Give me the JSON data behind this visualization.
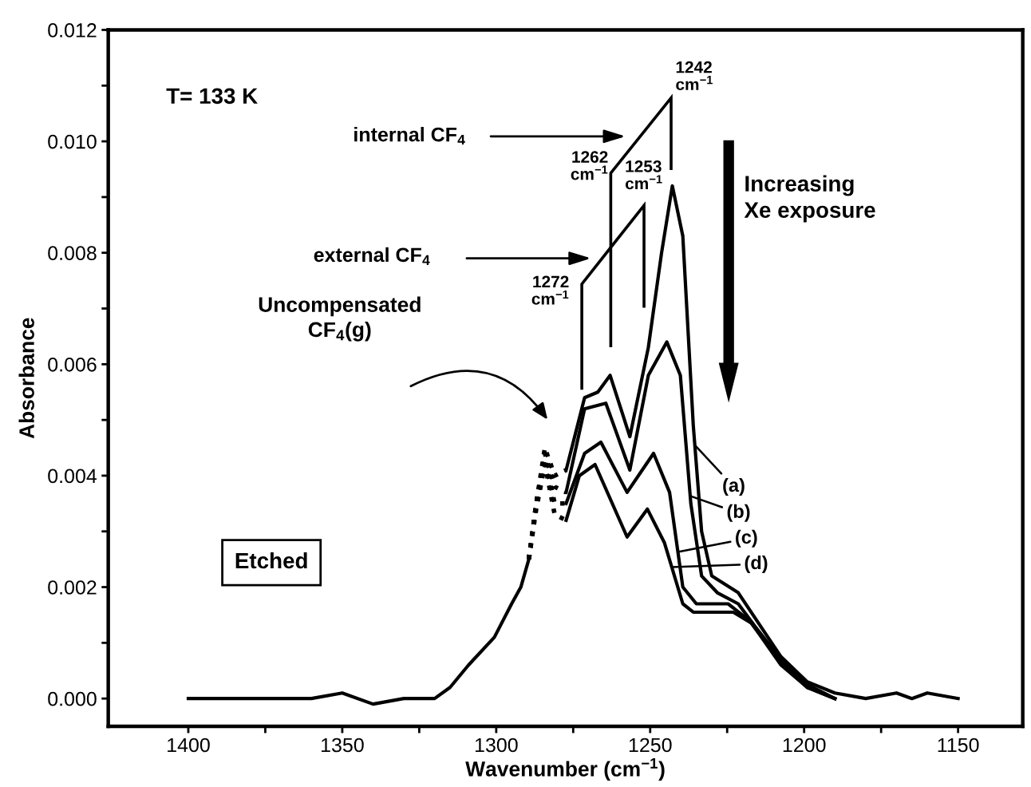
{
  "chart_data": {
    "type": "line",
    "xlabel": "Wavenumber (cm$^{−1}$)",
    "ylabel": "Absorbance",
    "xlim": [
      1426,
      1129
    ],
    "ylim": [
      -0.0005,
      0.012
    ],
    "xticks": [
      1400,
      {
        "value": 1375,
        "label": null
      },
      1350,
      {
        "value": 1325,
        "label": null
      },
      1300,
      {
        "value": 1275,
        "label": null
      },
      1250,
      {
        "value": 1225,
        "label": null
      },
      1200,
      {
        "value": 1175,
        "label": null
      },
      1150
    ],
    "yticks": [
      {
        "value": 0,
        "label": "0.000"
      },
      {
        "value": 0.001,
        "label": null
      },
      {
        "value": 0.002,
        "label": "0.002"
      },
      {
        "value": 0.003,
        "label": null
      },
      {
        "value": 0.004,
        "label": "0.004"
      },
      {
        "value": 0.005,
        "label": null
      },
      {
        "value": 0.006,
        "label": "0.006"
      },
      {
        "value": 0.007,
        "label": null
      },
      {
        "value": 0.008,
        "label": "0.008"
      },
      {
        "value": 0.009,
        "label": null
      },
      {
        "value": 0.01,
        "label": "0.010"
      },
      {
        "value": 0.011,
        "label": null
      },
      {
        "value": 0.012,
        "label": "0.012"
      }
    ],
    "grid": false,
    "legend": "right",
    "marker": "none",
    "line_style": "solid",
    "series": [
      {
        "name": "(a)",
        "color": "#000000",
        "x": [
          1400,
          1390,
          1380,
          1370,
          1360,
          1350,
          1340,
          1330,
          1320,
          1315,
          1309,
          1300.6,
          1295,
          1292,
          1289.4,
          1284,
          1277.3,
          1271.3,
          1267,
          1263,
          1256.6,
          1250.6,
          1246.3,
          1242.8,
          1239.4,
          1236,
          1233.3,
          1230,
          1221.4,
          1216,
          1207.5,
          1199,
          1190,
          1180,
          1170,
          1165,
          1160,
          1150
        ],
        "values": [
          0.0,
          0.0,
          0.0,
          0.0,
          0.0,
          0.0001,
          -0.0001,
          0.0,
          0.0,
          0.0002,
          0.0006,
          0.0011,
          0.0017,
          0.002,
          0.0025,
          null,
          0.0041,
          0.0054,
          0.0055,
          0.0058,
          0.0047,
          0.0063,
          0.008,
          0.0092,
          0.0083,
          0.0049,
          0.003,
          0.0022,
          0.0019,
          0.00145,
          0.00075,
          0.0003,
          0.0001,
          0.0,
          0.0001,
          0.0,
          0.0001,
          0.0
        ]
      },
      {
        "name": "(b)",
        "color": "#000000",
        "x": [
          1277.3,
          1271.3,
          1264.4,
          1256.6,
          1250.6,
          1244.6,
          1240.2,
          1236.8,
          1233.3,
          1228.2,
          1221.4,
          1216,
          1207.5,
          1199,
          1190
        ],
        "values": [
          0.0037,
          0.0052,
          0.0053,
          0.0041,
          0.0058,
          0.0064,
          0.0058,
          0.0035,
          0.0022,
          0.0019,
          0.0017,
          0.0013,
          0.0007,
          0.00025,
          0.0
        ]
      },
      {
        "name": "(c)",
        "color": "#000000",
        "x": [
          1277.3,
          1271.3,
          1266,
          1257.5,
          1248.9,
          1243.7,
          1239.4,
          1235,
          1224.7,
          1217.8,
          1207.5,
          1199,
          1190
        ],
        "values": [
          0.0035,
          0.0044,
          0.0046,
          0.0037,
          0.0044,
          0.0037,
          0.002,
          0.0017,
          0.0017,
          0.0014,
          0.00065,
          0.0002,
          0.0
        ]
      },
      {
        "name": "(d)",
        "color": "#000000",
        "x": [
          1277.3,
          1273,
          1267.9,
          1257.5,
          1250.9,
          1245.4,
          1239.4,
          1236,
          1223,
          1217,
          1207.5,
          1199,
          1190
        ],
        "values": [
          0.0032,
          0.004,
          0.0042,
          0.0029,
          0.0034,
          0.0028,
          0.0017,
          0.00155,
          0.00155,
          0.00135,
          0.0006,
          0.0002,
          0.0
        ]
      },
      {
        "color": "#000000",
        "line_style": "dotted",
        "x": [
          1289.4,
          1287,
          1284.2,
          1281,
          1277.3
        ],
        "values": [
          0.0025,
          0.0035,
          0.0045,
          0.004,
          0.0041
        ]
      },
      {
        "color": "#000000",
        "line_style": "dotted",
        "x": [
          1289.4,
          1287,
          1284.2,
          1281,
          1277.3
        ],
        "values": [
          0.0025,
          0.0035,
          0.0044,
          0.0038,
          0.0037
        ]
      },
      {
        "color": "#000000",
        "line_style": "dotted",
        "x": [
          1289.4,
          1287,
          1284.2,
          1281,
          1277.3
        ],
        "values": [
          0.0025,
          0.0035,
          0.0043,
          0.0035,
          0.0035
        ]
      },
      {
        "color": "#000000",
        "line_style": "dotted",
        "x": [
          1289.4,
          1287,
          1284.2,
          1281,
          1277.3
        ],
        "values": [
          0.0025,
          0.0034,
          0.0042,
          0.0033,
          0.0032
        ]
      }
    ],
    "annotations": [
      "T= 133 K",
      "internal CF$_{4}$",
      "external CF$_{4}$",
      "1242\ncm$^{−1}$",
      "1262\ncm$^{−1}$",
      "1253\ncm$^{−1}$",
      "1272\ncm$^{−1}$",
      "Increasing\nXe exposure",
      "Uncompensated\nCF$_{4}$(g)",
      "Etched"
    ]
  }
}
